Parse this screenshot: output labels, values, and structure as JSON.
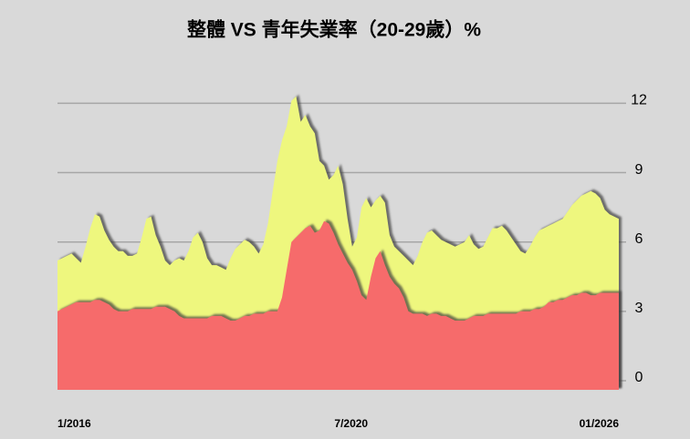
{
  "chart_data": {
    "type": "area",
    "title": "整體 VS 青年失業率（20-29歲）%",
    "categories": [
      "1/2016",
      null,
      null,
      null,
      null,
      null,
      null,
      null,
      null,
      null,
      null,
      null,
      null,
      null,
      null,
      null,
      null,
      null,
      null,
      null,
      null,
      null,
      null,
      null,
      null,
      null,
      null,
      null,
      null,
      null,
      null,
      null,
      null,
      null,
      null,
      null,
      null,
      null,
      null,
      null,
      null,
      null,
      null,
      null,
      null,
      null,
      null,
      null,
      null,
      null,
      null,
      null,
      null,
      null,
      "7/2020",
      null,
      null,
      null,
      null,
      null,
      null,
      null,
      null,
      null,
      null,
      null,
      null,
      null,
      null,
      null,
      null,
      null,
      null,
      null,
      null,
      null,
      null,
      null,
      null,
      null,
      null,
      null,
      null,
      null,
      null,
      null,
      null,
      null,
      null,
      null,
      null,
      null,
      null,
      null,
      null,
      null,
      null,
      null,
      null,
      null,
      null,
      null,
      null,
      null,
      null,
      null,
      null,
      null,
      null,
      null,
      null,
      null,
      null,
      null,
      null,
      null,
      null,
      null,
      null,
      null,
      "01/2026"
    ],
    "series": [
      {
        "color": "#eef77e",
        "values": [
          5.2,
          5.3,
          5.4,
          5.5,
          5.3,
          5.1,
          5.8,
          6.6,
          7.2,
          7.1,
          6.5,
          6.1,
          5.8,
          5.6,
          5.6,
          5.4,
          5.4,
          5.5,
          6.2,
          7.0,
          7.1,
          6.3,
          5.8,
          5.2,
          5.0,
          5.2,
          5.3,
          5.2,
          5.6,
          6.2,
          6.4,
          6.0,
          5.3,
          5.0,
          5.0,
          4.9,
          4.8,
          5.3,
          5.7,
          5.9,
          6.1,
          6.0,
          5.8,
          5.5,
          5.9,
          6.8,
          8.2,
          9.5,
          10.4,
          11.0,
          12.1,
          12.3,
          11.2,
          11.5,
          11.0,
          10.7,
          9.5,
          9.3,
          8.7,
          8.9,
          9.3,
          8.5,
          7.0,
          5.8,
          6.2,
          7.5,
          7.9,
          7.5,
          7.8,
          8.0,
          7.7,
          6.3,
          5.8,
          5.6,
          5.4,
          5.2,
          5.0,
          5.4,
          6.0,
          6.4,
          6.5,
          6.3,
          6.1,
          6.0,
          5.9,
          5.8,
          5.9,
          6.0,
          6.3,
          5.9,
          5.7,
          5.8,
          6.2,
          6.6,
          6.6,
          6.7,
          6.5,
          6.2,
          5.9,
          5.6,
          5.5,
          5.8,
          6.2,
          6.5,
          6.6,
          6.7,
          6.8,
          6.9,
          7.0,
          7.3,
          7.6,
          7.8,
          8.0,
          8.1,
          8.2,
          8.1,
          7.9,
          7.4,
          7.2,
          7.1,
          7.0
        ]
      },
      {
        "color": "#f66b6b",
        "values": [
          3.0,
          3.1,
          3.2,
          3.3,
          3.4,
          3.4,
          3.4,
          3.4,
          3.5,
          3.5,
          3.4,
          3.3,
          3.1,
          3.0,
          3.0,
          3.0,
          3.1,
          3.1,
          3.1,
          3.1,
          3.1,
          3.2,
          3.2,
          3.2,
          3.1,
          3.0,
          2.8,
          2.7,
          2.7,
          2.7,
          2.7,
          2.7,
          2.7,
          2.8,
          2.8,
          2.8,
          2.7,
          2.6,
          2.6,
          2.7,
          2.8,
          2.8,
          2.9,
          2.9,
          2.9,
          3.0,
          3.0,
          3.0,
          3.6,
          4.8,
          6.0,
          6.2,
          6.4,
          6.6,
          6.7,
          6.4,
          6.5,
          6.9,
          6.8,
          6.4,
          5.9,
          5.5,
          5.1,
          4.8,
          4.3,
          3.7,
          3.5,
          4.5,
          5.3,
          5.6,
          5.0,
          4.5,
          4.2,
          4.0,
          3.6,
          3.0,
          2.9,
          2.9,
          2.9,
          2.8,
          2.9,
          2.9,
          2.8,
          2.8,
          2.7,
          2.6,
          2.6,
          2.6,
          2.7,
          2.8,
          2.8,
          2.8,
          2.9,
          2.9,
          2.9,
          2.9,
          2.9,
          2.9,
          2.9,
          3.0,
          3.0,
          3.0,
          3.1,
          3.1,
          3.2,
          3.4,
          3.4,
          3.5,
          3.5,
          3.6,
          3.7,
          3.7,
          3.8,
          3.8,
          3.7,
          3.7,
          3.8,
          3.8,
          3.8,
          3.8,
          3.8
        ]
      }
    ],
    "ylim": [
      0,
      13
    ],
    "yticks": [
      0,
      3,
      6,
      9,
      12
    ],
    "grid": true
  }
}
